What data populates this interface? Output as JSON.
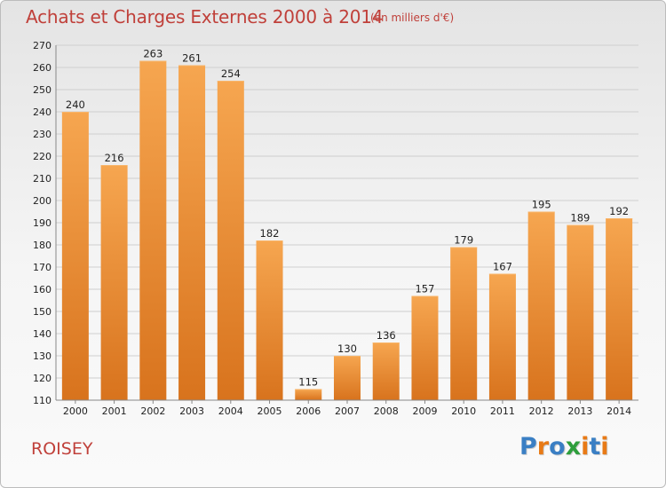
{
  "header": {
    "title": "Achats et Charges Externes 2000 à 2014",
    "subtitle": "(en milliers d'€)"
  },
  "footer": {
    "location": "ROISEY",
    "logo": [
      "P",
      "r",
      "o",
      "x",
      "i",
      "t",
      "i"
    ]
  },
  "colors": {
    "title": "#c0403a",
    "bar_top": "#f6a650",
    "bar_bottom": "#d8731d",
    "grid": "#cfcfcf",
    "logo_letters": [
      "#3a7fc4",
      "#e87a16",
      "#3a7fc4",
      "#2e9e3c",
      "#e87a16",
      "#3a7fc4",
      "#e87a16"
    ]
  },
  "chart_data": {
    "type": "bar",
    "title": "Achats et Charges Externes 2000 à 2014",
    "subtitle": "(en milliers d'€)",
    "categories": [
      "2000",
      "2001",
      "2002",
      "2003",
      "2004",
      "2005",
      "2006",
      "2007",
      "2008",
      "2009",
      "2010",
      "2011",
      "2012",
      "2013",
      "2014"
    ],
    "values": [
      240,
      216,
      263,
      261,
      254,
      182,
      115,
      130,
      136,
      157,
      179,
      167,
      195,
      189,
      192
    ],
    "ylim": [
      110,
      270
    ],
    "yticks": [
      110,
      120,
      130,
      140,
      150,
      160,
      170,
      180,
      190,
      200,
      210,
      220,
      230,
      240,
      250,
      260,
      270
    ],
    "grid": true,
    "data_labels": true
  }
}
